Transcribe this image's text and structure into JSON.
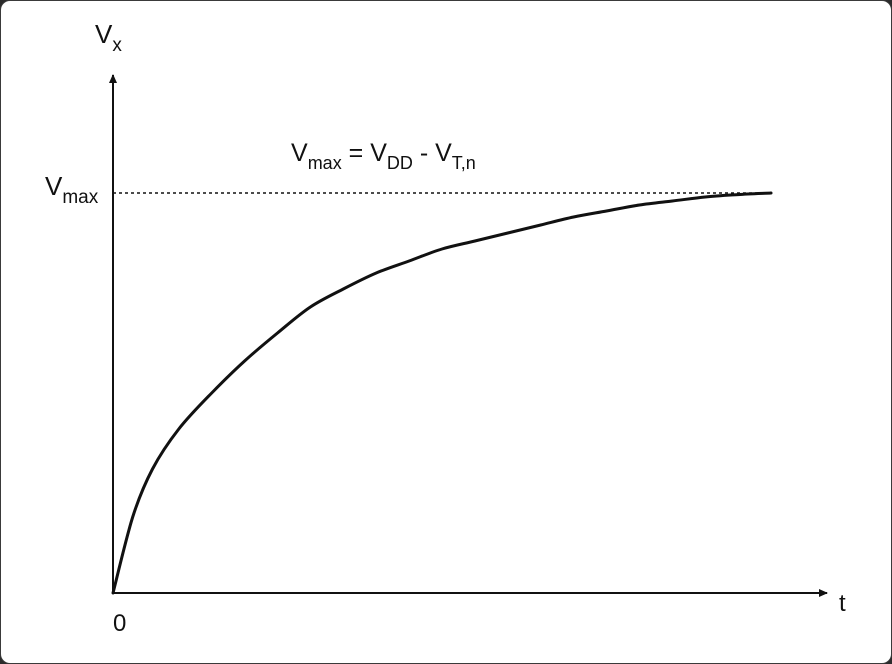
{
  "chart_data": {
    "type": "line",
    "y_axis": {
      "label": "V",
      "label_sub": "x"
    },
    "x_axis": {
      "label": "t",
      "origin_label": "0"
    },
    "reference_line": {
      "label": "V",
      "label_sub": "max",
      "style": "dashed",
      "value": 1.0
    },
    "equation": {
      "parts": [
        {
          "text": "V",
          "sub": "max"
        },
        {
          "text": " = "
        },
        {
          "text": "V",
          "sub": "DD"
        },
        {
          "text": " - "
        },
        {
          "text": "V",
          "sub": "T,n"
        }
      ]
    },
    "x_range": [
      0,
      1
    ],
    "y_range": [
      0,
      1
    ],
    "series": [
      {
        "x": [
          0.0,
          0.03,
          0.06,
          0.1,
          0.15,
          0.2,
          0.25,
          0.3,
          0.35,
          0.4,
          0.45,
          0.5,
          0.55,
          0.6,
          0.65,
          0.7,
          0.75,
          0.8,
          0.85,
          0.9,
          0.95,
          1.0
        ],
        "y": [
          0.0,
          0.19,
          0.31,
          0.41,
          0.5,
          0.58,
          0.65,
          0.715,
          0.76,
          0.8,
          0.83,
          0.86,
          0.88,
          0.9,
          0.92,
          0.94,
          0.955,
          0.97,
          0.98,
          0.99,
          0.996,
          1.0
        ]
      }
    ],
    "colors": {
      "line": "#111111",
      "axis": "#111111",
      "background": "#ffffff"
    }
  }
}
